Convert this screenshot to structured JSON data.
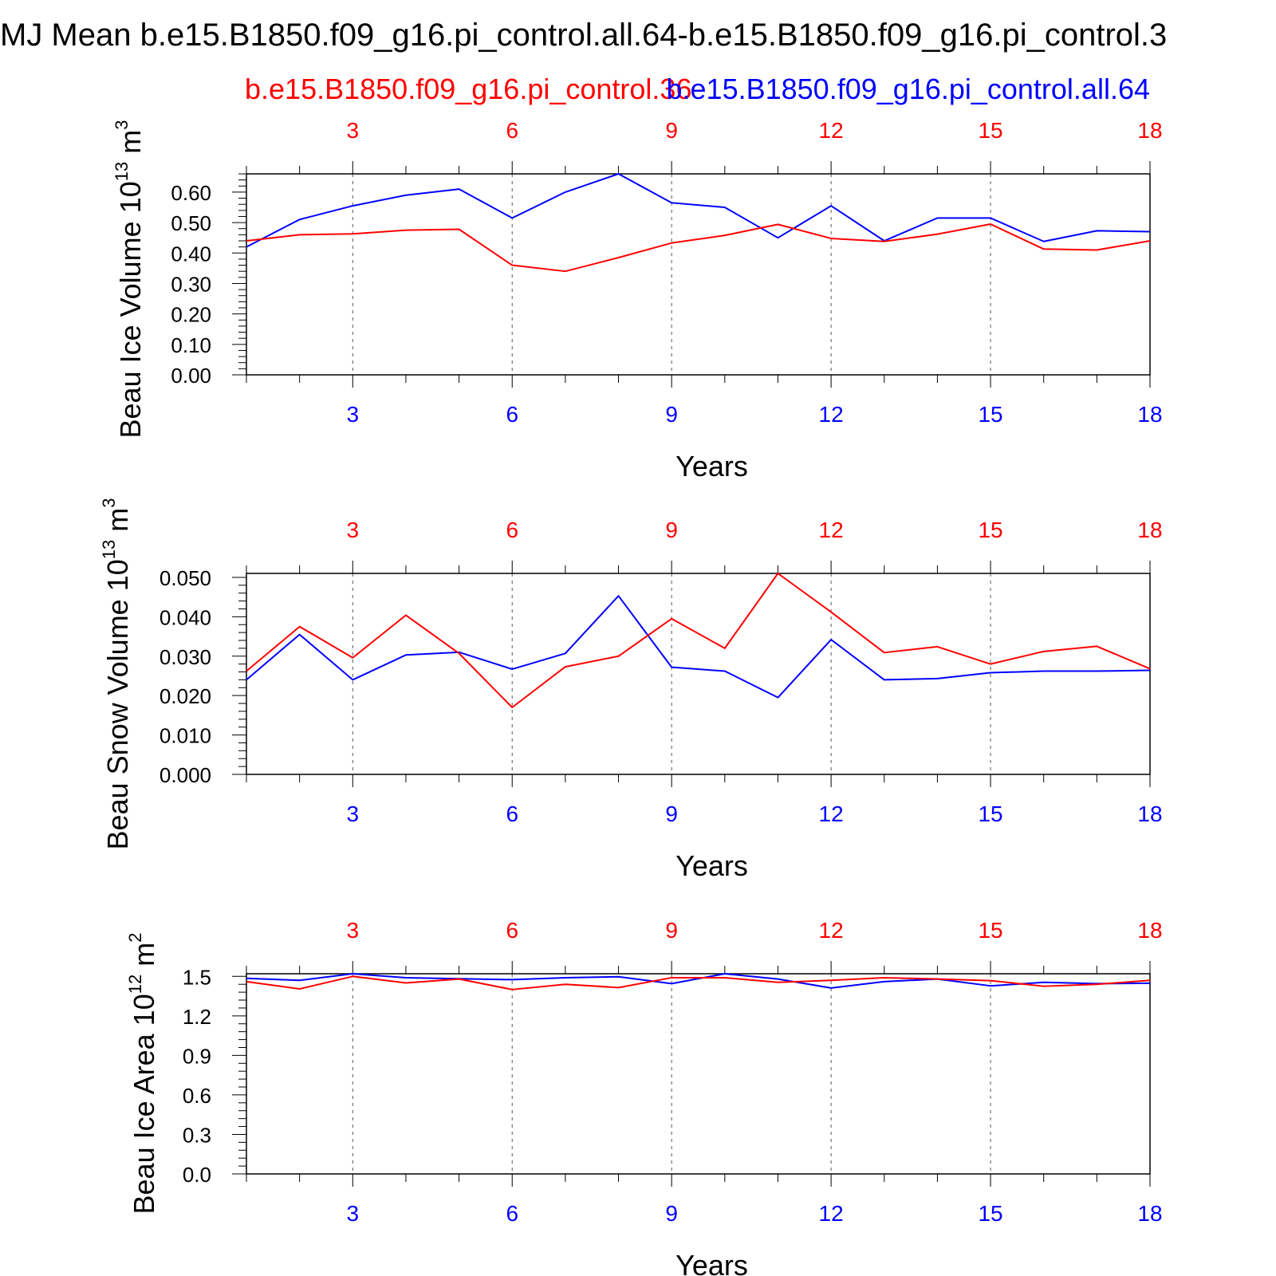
{
  "title": "MJ Mean b.e15.B1850.f09_g16.pi_control.all.64-b.e15.B1850.f09_g16.pi_control.3",
  "legend": {
    "red_label": "b.e15.B1850.f09_g16.pi_control.36",
    "blue_label": "b.e15.B1850.f09_g16.pi_control.all.64"
  },
  "colors": {
    "series_a": "#ff0000",
    "series_b": "#0000ff",
    "axis": "#000000"
  },
  "chart_data": [
    {
      "type": "line",
      "title": "",
      "xlabel": "Years",
      "ylabel": "Beau Ice Volume 10",
      "ylabel_exp": "13",
      "ylabel_unit": " m",
      "ylabel_unit_exp": "3",
      "xlim": [
        1,
        18
      ],
      "ylim": [
        0,
        0.66
      ],
      "yticks": [
        0,
        0.1,
        0.2,
        0.3,
        0.4,
        0.5,
        0.6
      ],
      "ytick_labels": [
        "0.00",
        "0.10",
        "0.20",
        "0.30",
        "0.40",
        "0.50",
        "0.60"
      ],
      "xticks": [
        3,
        6,
        9,
        12,
        15,
        18
      ],
      "xtick_labels": [
        "3",
        "6",
        "9",
        "12",
        "15",
        "18"
      ],
      "x": [
        1,
        2,
        3,
        4,
        5,
        6,
        7,
        8,
        9,
        10,
        11,
        12,
        13,
        14,
        15,
        16,
        17,
        18
      ],
      "series": [
        {
          "color": "#0000ff",
          "values": [
            0.42,
            0.51,
            0.555,
            0.59,
            0.61,
            0.515,
            0.6,
            0.66,
            0.565,
            0.55,
            0.45,
            0.555,
            0.44,
            0.515,
            0.515,
            0.438,
            0.473,
            0.47
          ]
        },
        {
          "color": "#ff0000",
          "values": [
            0.44,
            0.46,
            0.463,
            0.475,
            0.478,
            0.36,
            0.34,
            0.385,
            0.433,
            0.458,
            0.494,
            0.448,
            0.438,
            0.462,
            0.495,
            0.413,
            0.41,
            0.44
          ]
        }
      ],
      "grid": "vertical dashed at major x ticks"
    },
    {
      "type": "line",
      "title": "",
      "xlabel": "Years",
      "ylabel": "Beau Snow Volume 10",
      "ylabel_exp": "13",
      "ylabel_unit": " m",
      "ylabel_unit_exp": "3",
      "xlim": [
        1,
        18
      ],
      "ylim": [
        0,
        0.051
      ],
      "yticks": [
        0,
        0.01,
        0.02,
        0.03,
        0.04,
        0.05
      ],
      "ytick_labels": [
        "0.000",
        "0.010",
        "0.020",
        "0.030",
        "0.040",
        "0.050"
      ],
      "xticks": [
        3,
        6,
        9,
        12,
        15,
        18
      ],
      "xtick_labels": [
        "3",
        "6",
        "9",
        "12",
        "15",
        "18"
      ],
      "x": [
        1,
        2,
        3,
        4,
        5,
        6,
        7,
        8,
        9,
        10,
        11,
        12,
        13,
        14,
        15,
        16,
        17,
        18
      ],
      "series": [
        {
          "color": "#0000ff",
          "values": [
            0.024,
            0.0355,
            0.024,
            0.0303,
            0.031,
            0.0267,
            0.0307,
            0.0453,
            0.0272,
            0.0262,
            0.0195,
            0.0342,
            0.024,
            0.0243,
            0.0258,
            0.0262,
            0.0262,
            0.0264
          ]
        },
        {
          "color": "#ff0000",
          "values": [
            0.0262,
            0.0375,
            0.0296,
            0.0404,
            0.0307,
            0.017,
            0.0273,
            0.03,
            0.0395,
            0.032,
            0.051,
            0.0412,
            0.0309,
            0.0324,
            0.028,
            0.0312,
            0.0325,
            0.0268
          ]
        }
      ],
      "grid": "vertical dashed at major x ticks"
    },
    {
      "type": "line",
      "title": "",
      "xlabel": "Years",
      "ylabel": "Beau Ice Area 10",
      "ylabel_exp": "12",
      "ylabel_unit": " m",
      "ylabel_unit_exp": "2",
      "xlim": [
        1,
        18
      ],
      "ylim": [
        0,
        1.52
      ],
      "yticks": [
        0,
        0.3,
        0.6,
        0.9,
        1.2,
        1.5
      ],
      "ytick_labels": [
        "0.0",
        "0.3",
        "0.6",
        "0.9",
        "1.2",
        "1.5"
      ],
      "xticks": [
        3,
        6,
        9,
        12,
        15,
        18
      ],
      "xtick_labels": [
        "3",
        "6",
        "9",
        "12",
        "15",
        "18"
      ],
      "x": [
        1,
        2,
        3,
        4,
        5,
        6,
        7,
        8,
        9,
        10,
        11,
        12,
        13,
        14,
        15,
        16,
        17,
        18
      ],
      "series": [
        {
          "color": "#0000ff",
          "values": [
            1.485,
            1.47,
            1.52,
            1.49,
            1.482,
            1.475,
            1.49,
            1.497,
            1.445,
            1.52,
            1.48,
            1.412,
            1.46,
            1.48,
            1.428,
            1.455,
            1.445,
            1.448
          ]
        },
        {
          "color": "#ff0000",
          "values": [
            1.46,
            1.405,
            1.5,
            1.45,
            1.48,
            1.4,
            1.44,
            1.415,
            1.49,
            1.49,
            1.455,
            1.47,
            1.49,
            1.48,
            1.468,
            1.425,
            1.44,
            1.47
          ]
        }
      ],
      "grid": "vertical dashed at major x ticks"
    }
  ]
}
